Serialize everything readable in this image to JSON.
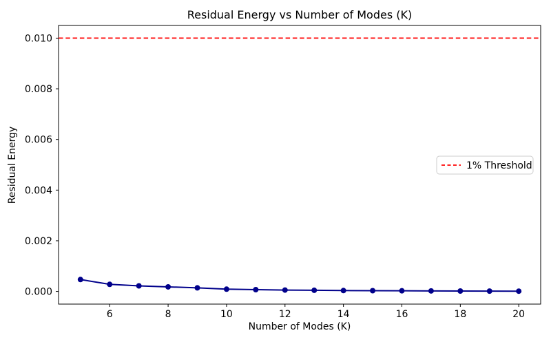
{
  "chart_data": {
    "type": "line",
    "title": "Residual Energy vs Number of Modes (K)",
    "xlabel": "Number of Modes (K)",
    "ylabel": "Residual Energy",
    "x": [
      5,
      6,
      7,
      8,
      9,
      10,
      11,
      12,
      13,
      14,
      15,
      16,
      17,
      18,
      19,
      20
    ],
    "series": [
      {
        "name": "Residual Energy",
        "color": "#00008b",
        "marker": "circle",
        "line_style": "solid",
        "values": [
          0.00047,
          0.00028,
          0.00022,
          0.00018,
          0.00014,
          9e-05,
          7e-05,
          5.5e-05,
          4.5e-05,
          3.5e-05,
          3e-05,
          2.5e-05,
          2e-05,
          1.6e-05,
          1.3e-05,
          1e-05
        ]
      }
    ],
    "threshold": {
      "label": "1% Threshold",
      "value": 0.01,
      "color": "#ff0000",
      "style": "dashed"
    },
    "xticks": [
      6,
      8,
      10,
      12,
      14,
      16,
      18,
      20
    ],
    "yticks": [
      0.0,
      0.002,
      0.004,
      0.006,
      0.008,
      0.01
    ],
    "xlim": [
      4.25,
      20.75
    ],
    "ylim": [
      -0.0005,
      0.0105
    ],
    "grid": false,
    "legend_position": "center right",
    "background_color": "#ffffff",
    "spine_color": "#000000"
  }
}
